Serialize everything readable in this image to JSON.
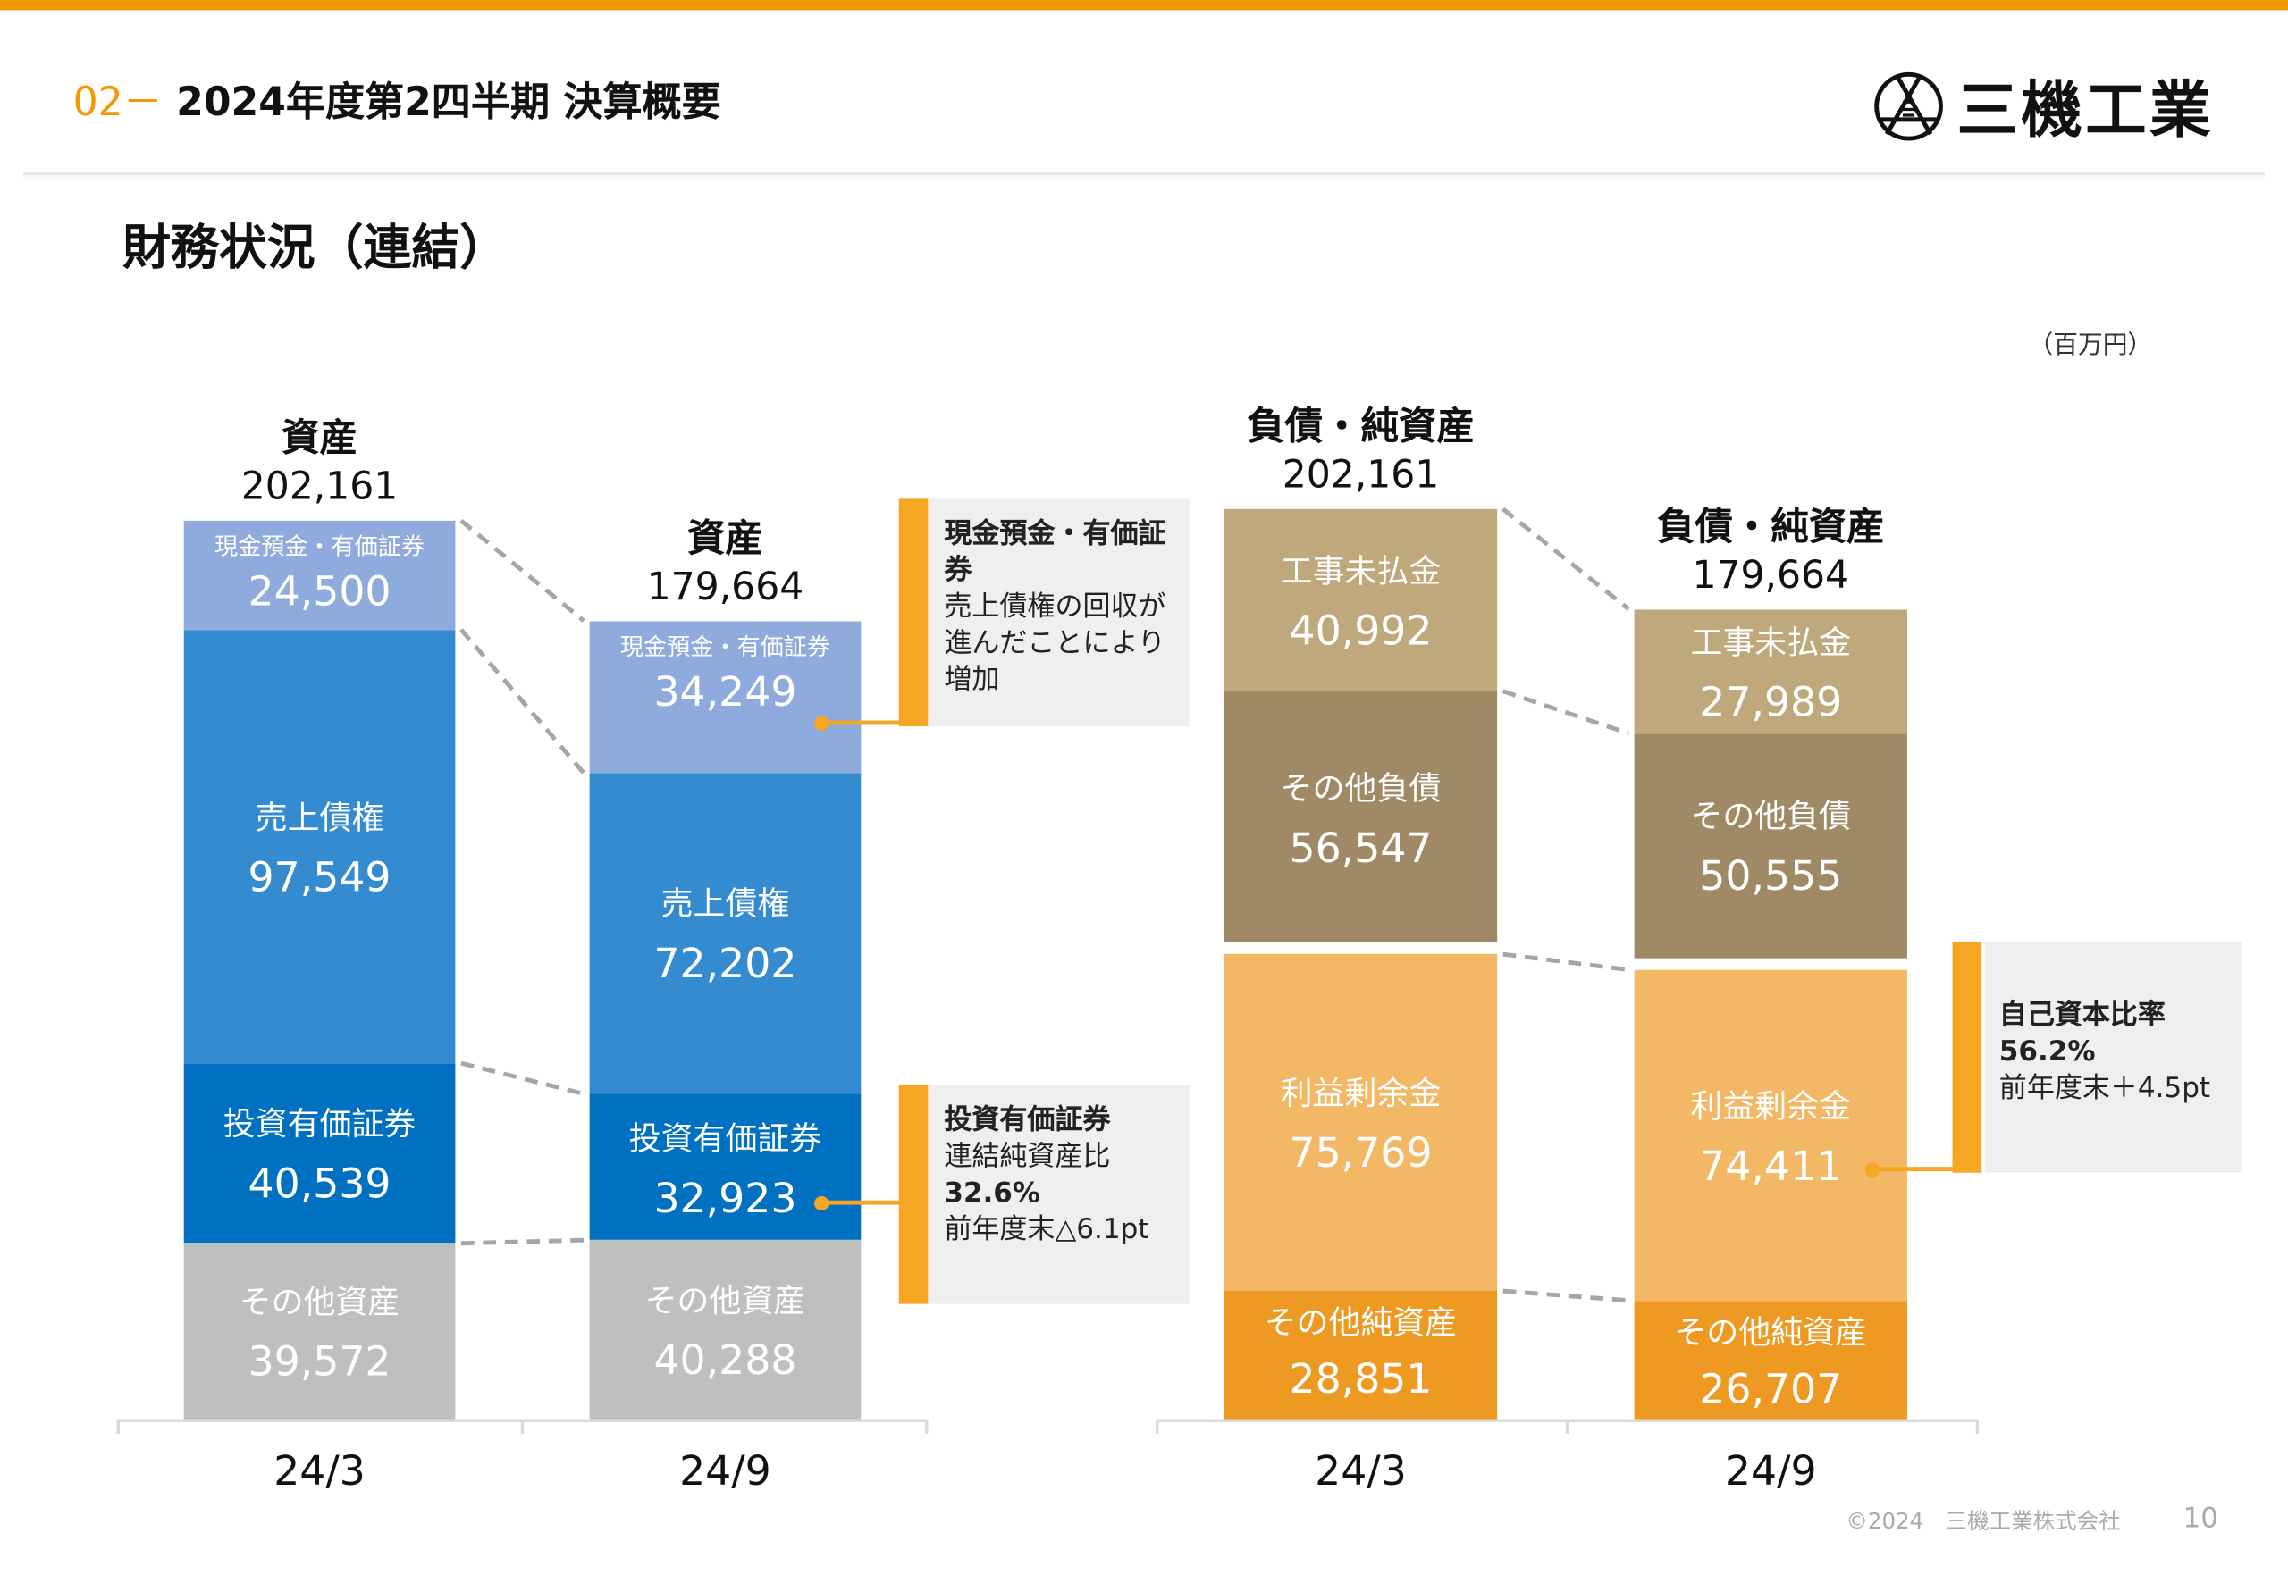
{
  "header": {
    "section_num": "02",
    "dash": "－",
    "title": "2024年度第2四半期 決算概要"
  },
  "logo": {
    "text": "三機工業"
  },
  "page_title": "財務状況（連結）",
  "unit": "（百万円）",
  "colors": {
    "accent": "#f39800",
    "cash": "#8faadc",
    "receivables": "#348bd0",
    "securities": "#0070c0",
    "other_assets": "#bfbfbf",
    "payables": "#bfa97c",
    "other_liab": "#a08a66",
    "retained": "#f2b866",
    "other_equity": "#ee9a22"
  },
  "chart_data": [
    {
      "type": "bar",
      "stacked": true,
      "title": "資産",
      "categories": [
        "24/3",
        "24/9"
      ],
      "totals": [
        "202,161",
        "179,664"
      ],
      "series": [
        {
          "name": "その他資産",
          "values": [
            39572,
            40288
          ],
          "display": [
            "39,572",
            "40,288"
          ],
          "color_key": "other_assets"
        },
        {
          "name": "投資有価証券",
          "values": [
            40539,
            32923
          ],
          "display": [
            "40,539",
            "32,923"
          ],
          "color_key": "securities"
        },
        {
          "name": "売上債権",
          "values": [
            97549,
            72202
          ],
          "display": [
            "97,549",
            "72,202"
          ],
          "color_key": "receivables"
        },
        {
          "name": "現金預金・有価証券",
          "values": [
            24500,
            34249
          ],
          "display": [
            "24,500",
            "34,249"
          ],
          "color_key": "cash",
          "small": true
        }
      ]
    },
    {
      "type": "bar",
      "stacked": true,
      "title": "負債・純資産",
      "categories": [
        "24/3",
        "24/9"
      ],
      "totals": [
        "202,161",
        "179,664"
      ],
      "series": [
        {
          "name": "その他純資産",
          "values": [
            28851,
            26707
          ],
          "display": [
            "28,851",
            "26,707"
          ],
          "color_key": "other_equity",
          "label_top": true
        },
        {
          "name": "利益剰余金",
          "values": [
            75769,
            74411
          ],
          "display": [
            "75,769",
            "74,411"
          ],
          "color_key": "retained"
        },
        {
          "name": "その他負債",
          "values": [
            56547,
            50555
          ],
          "display": [
            "56,547",
            "50,555"
          ],
          "color_key": "other_liab",
          "gap_before": true
        },
        {
          "name": "工事未払金",
          "values": [
            40992,
            27989
          ],
          "display": [
            "40,992",
            "27,989"
          ],
          "color_key": "payables"
        }
      ]
    }
  ],
  "callouts": {
    "cash": {
      "title": "現金預金・有価証券",
      "body": "売上債権の回収が進んだことにより増加"
    },
    "securities": {
      "title": "投資有価証券",
      "line1": "連結純資産比",
      "value": "32.6%",
      "line2": "前年度末△6.1pt"
    },
    "equity_ratio": {
      "title": "自己資本比率",
      "value": "56.2%",
      "line2": "前年度末＋4.5pt"
    }
  },
  "footer": {
    "copyright": "©2024　三機工業株式会社",
    "page": "10"
  }
}
